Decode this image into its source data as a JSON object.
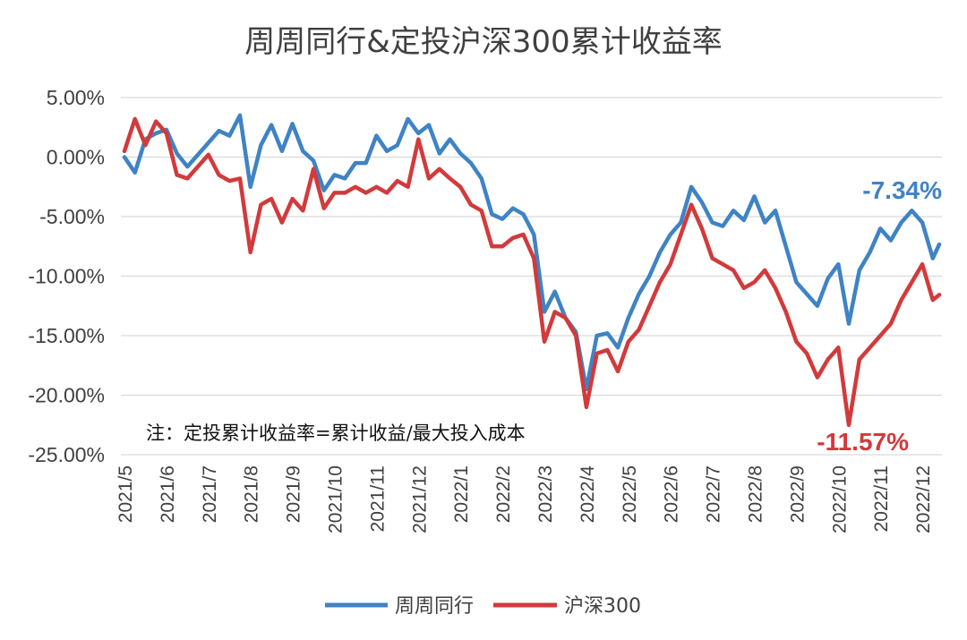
{
  "chart_data": {
    "type": "line",
    "title": "周周同行&定投沪深300累计收益率",
    "note": "注：定投累计收益率=累计收益/最大投入成本",
    "xlabel": "",
    "ylabel": "",
    "ylim": [
      -25,
      5
    ],
    "y_ticks": [
      "5.00%",
      "0.00%",
      "-5.00%",
      "-10.00%",
      "-15.00%",
      "-20.00%",
      "-25.00%"
    ],
    "y_tick_values": [
      5,
      0,
      -5,
      -10,
      -15,
      -20,
      -25
    ],
    "x_ticks": [
      "2021/5",
      "2021/6",
      "2021/7",
      "2021/8",
      "2021/9",
      "2021/10",
      "2021/11",
      "2021/12",
      "2022/1",
      "2022/2",
      "2022/3",
      "2022/4",
      "2022/5",
      "2022/6",
      "2022/7",
      "2022/8",
      "2022/9",
      "2022/10",
      "2022/11",
      "2022/12"
    ],
    "grid": true,
    "legend_position": "bottom",
    "series": [
      {
        "name": "周周同行",
        "color": "#3f83c5",
        "end_label": "-7.34%",
        "points": [
          [
            "2021/5",
            0.0
          ],
          [
            "2021/5",
            -1.3
          ],
          [
            "2021/5",
            1.5
          ],
          [
            "2021/5",
            2.0
          ],
          [
            "2021/6",
            2.3
          ],
          [
            "2021/6",
            0.3
          ],
          [
            "2021/6",
            -0.8
          ],
          [
            "2021/7",
            1.2
          ],
          [
            "2021/7",
            2.2
          ],
          [
            "2021/7",
            1.8
          ],
          [
            "2021/7",
            3.5
          ],
          [
            "2021/8",
            -2.5
          ],
          [
            "2021/8",
            1.0
          ],
          [
            "2021/8",
            2.7
          ],
          [
            "2021/8",
            0.5
          ],
          [
            "2021/9",
            2.8
          ],
          [
            "2021/9",
            0.5
          ],
          [
            "2021/9",
            -0.3
          ],
          [
            "2021/9",
            -2.8
          ],
          [
            "2021/10",
            -1.5
          ],
          [
            "2021/10",
            -1.8
          ],
          [
            "2021/10",
            -0.5
          ],
          [
            "2021/10",
            -0.5
          ],
          [
            "2021/11",
            1.8
          ],
          [
            "2021/11",
            0.5
          ],
          [
            "2021/11",
            1.0
          ],
          [
            "2021/11",
            3.2
          ],
          [
            "2021/12",
            2.0
          ],
          [
            "2021/12",
            2.7
          ],
          [
            "2021/12",
            0.3
          ],
          [
            "2021/12",
            1.5
          ],
          [
            "2022/1",
            0.3
          ],
          [
            "2022/1",
            -0.5
          ],
          [
            "2022/1",
            -1.8
          ],
          [
            "2022/1",
            -4.8
          ],
          [
            "2022/2",
            -5.2
          ],
          [
            "2022/2",
            -4.3
          ],
          [
            "2022/2",
            -4.8
          ],
          [
            "2022/2",
            -6.5
          ],
          [
            "2022/3",
            -13.0
          ],
          [
            "2022/3",
            -11.3
          ],
          [
            "2022/3",
            -13.5
          ],
          [
            "2022/3",
            -14.7
          ],
          [
            "2022/4",
            -19.5
          ],
          [
            "2022/4",
            -15.0
          ],
          [
            "2022/4",
            -14.8
          ],
          [
            "2022/4",
            -16.0
          ],
          [
            "2022/5",
            -13.5
          ],
          [
            "2022/5",
            -11.5
          ],
          [
            "2022/5",
            -10.0
          ],
          [
            "2022/5",
            -8.0
          ],
          [
            "2022/6",
            -6.5
          ],
          [
            "2022/6",
            -5.5
          ],
          [
            "2022/6",
            -2.5
          ],
          [
            "2022/6",
            -3.8
          ],
          [
            "2022/7",
            -5.5
          ],
          [
            "2022/7",
            -5.8
          ],
          [
            "2022/7",
            -4.5
          ],
          [
            "2022/7",
            -5.3
          ],
          [
            "2022/8",
            -3.3
          ],
          [
            "2022/8",
            -5.5
          ],
          [
            "2022/8",
            -4.5
          ],
          [
            "2022/8",
            -7.5
          ],
          [
            "2022/9",
            -10.5
          ],
          [
            "2022/9",
            -11.5
          ],
          [
            "2022/9",
            -12.5
          ],
          [
            "2022/9",
            -10.2
          ],
          [
            "2022/10",
            -9.0
          ],
          [
            "2022/10",
            -14.0
          ],
          [
            "2022/10",
            -9.5
          ],
          [
            "2022/10",
            -8.0
          ],
          [
            "2022/11",
            -6.0
          ],
          [
            "2022/11",
            -7.0
          ],
          [
            "2022/11",
            -5.5
          ],
          [
            "2022/11",
            -4.5
          ],
          [
            "2022/12",
            -5.5
          ],
          [
            "2022/12",
            -8.5
          ],
          [
            "2022/12",
            -7.34
          ]
        ]
      },
      {
        "name": "沪深300",
        "color": "#d23a3b",
        "end_label": "-11.57%",
        "points": [
          [
            "2021/5",
            0.5
          ],
          [
            "2021/5",
            3.2
          ],
          [
            "2021/5",
            1.0
          ],
          [
            "2021/5",
            3.0
          ],
          [
            "2021/6",
            2.0
          ],
          [
            "2021/6",
            -1.5
          ],
          [
            "2021/6",
            -1.8
          ],
          [
            "2021/7",
            0.2
          ],
          [
            "2021/7",
            -1.5
          ],
          [
            "2021/7",
            -2.0
          ],
          [
            "2021/7",
            -1.8
          ],
          [
            "2021/8",
            -8.0
          ],
          [
            "2021/8",
            -4.0
          ],
          [
            "2021/8",
            -3.5
          ],
          [
            "2021/8",
            -5.5
          ],
          [
            "2021/9",
            -3.5
          ],
          [
            "2021/9",
            -4.5
          ],
          [
            "2021/9",
            -1.0
          ],
          [
            "2021/9",
            -4.3
          ],
          [
            "2021/10",
            -3.0
          ],
          [
            "2021/10",
            -3.0
          ],
          [
            "2021/10",
            -2.5
          ],
          [
            "2021/10",
            -3.0
          ],
          [
            "2021/11",
            -2.5
          ],
          [
            "2021/11",
            -3.0
          ],
          [
            "2021/11",
            -2.0
          ],
          [
            "2021/11",
            -2.5
          ],
          [
            "2021/12",
            1.5
          ],
          [
            "2021/12",
            -1.8
          ],
          [
            "2021/12",
            -1.0
          ],
          [
            "2021/12",
            -1.8
          ],
          [
            "2022/1",
            -2.5
          ],
          [
            "2022/1",
            -4.0
          ],
          [
            "2022/1",
            -4.5
          ],
          [
            "2022/1",
            -7.5
          ],
          [
            "2022/2",
            -7.5
          ],
          [
            "2022/2",
            -6.8
          ],
          [
            "2022/2",
            -6.5
          ],
          [
            "2022/2",
            -8.5
          ],
          [
            "2022/3",
            -15.5
          ],
          [
            "2022/3",
            -13.0
          ],
          [
            "2022/3",
            -13.5
          ],
          [
            "2022/3",
            -15.0
          ],
          [
            "2022/4",
            -21.0
          ],
          [
            "2022/4",
            -16.5
          ],
          [
            "2022/4",
            -16.2
          ],
          [
            "2022/4",
            -18.0
          ],
          [
            "2022/5",
            -15.5
          ],
          [
            "2022/5",
            -14.5
          ],
          [
            "2022/5",
            -12.5
          ],
          [
            "2022/5",
            -10.5
          ],
          [
            "2022/6",
            -9.0
          ],
          [
            "2022/6",
            -6.5
          ],
          [
            "2022/6",
            -4.0
          ],
          [
            "2022/6",
            -6.0
          ],
          [
            "2022/7",
            -8.5
          ],
          [
            "2022/7",
            -9.0
          ],
          [
            "2022/7",
            -9.5
          ],
          [
            "2022/7",
            -11.0
          ],
          [
            "2022/8",
            -10.5
          ],
          [
            "2022/8",
            -9.5
          ],
          [
            "2022/8",
            -11.0
          ],
          [
            "2022/8",
            -13.0
          ],
          [
            "2022/9",
            -15.5
          ],
          [
            "2022/9",
            -16.5
          ],
          [
            "2022/9",
            -18.5
          ],
          [
            "2022/9",
            -17.0
          ],
          [
            "2022/10",
            -16.0
          ],
          [
            "2022/10",
            -22.5
          ],
          [
            "2022/10",
            -17.0
          ],
          [
            "2022/10",
            -16.0
          ],
          [
            "2022/11",
            -15.0
          ],
          [
            "2022/11",
            -14.0
          ],
          [
            "2022/11",
            -12.0
          ],
          [
            "2022/11",
            -10.5
          ],
          [
            "2022/12",
            -9.0
          ],
          [
            "2022/12",
            -12.0
          ],
          [
            "2022/12",
            -11.57
          ]
        ]
      }
    ]
  }
}
